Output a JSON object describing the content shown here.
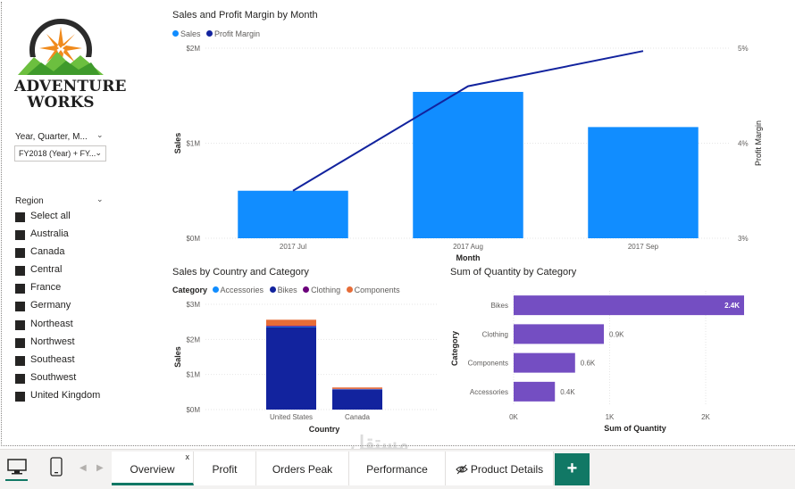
{
  "logo": {
    "line1": "ADVENTURE",
    "line2": "WORKS"
  },
  "slicers": {
    "date": {
      "title": "Year, Quarter, M...",
      "value": "FY2018 (Year) + FY..."
    },
    "region": {
      "title": "Region",
      "items": [
        "Select all",
        "Australia",
        "Canada",
        "Central",
        "France",
        "Germany",
        "Northeast",
        "Northwest",
        "Southeast",
        "Southwest",
        "United Kingdom"
      ]
    }
  },
  "charts_text": {
    "c1": {
      "title": "Sales and Profit Margin by Month",
      "legend": [
        "Sales",
        "Profit Margin"
      ],
      "xlabel": "Month",
      "ylabel": "Sales",
      "y2label": "Profit Margin",
      "yticks": [
        "$2M",
        "$1M",
        "$0M"
      ],
      "y2ticks": [
        "5%",
        "4%",
        "3%"
      ],
      "categories": [
        "2017 Jul",
        "2017 Aug",
        "2017 Sep"
      ]
    },
    "c2": {
      "title": "Sales by Country and Category",
      "legend_header": "Category",
      "legend": [
        "Accessories",
        "Bikes",
        "Clothing",
        "Components"
      ],
      "xlabel": "Country",
      "ylabel": "Sales",
      "yticks": [
        "$3M",
        "$2M",
        "$1M",
        "$0M"
      ],
      "categories": [
        "United States",
        "Canada"
      ]
    },
    "c3": {
      "title": "Sum of Quantity by Category",
      "xlabel": "Sum of Quantity",
      "ylabel": "Category",
      "categories": [
        "Bikes",
        "Clothing",
        "Components",
        "Accessories"
      ],
      "data_labels": [
        "2.4K",
        "0.9K",
        "0.6K",
        "0.4K"
      ],
      "xticks": [
        "0K",
        "1K",
        "2K"
      ]
    }
  },
  "chart_data": [
    {
      "type": "bar",
      "title": "Sales and Profit Margin by Month",
      "categories": [
        "2017 Jul",
        "2017 Aug",
        "2017 Sep"
      ],
      "series": [
        {
          "name": "Sales",
          "type": "bar",
          "axis": "left",
          "values": [
            500000,
            1540000,
            1170000
          ]
        },
        {
          "name": "Profit Margin",
          "type": "line",
          "axis": "right",
          "values": [
            3.5,
            4.6,
            4.97
          ]
        }
      ],
      "xlabel": "Month",
      "ylabel": "Sales",
      "y2label": "Profit Margin",
      "ylim": [
        0,
        2000000
      ],
      "y2lim": [
        3,
        5
      ],
      "legend": "top-left",
      "grid": true
    },
    {
      "type": "bar",
      "stacked": true,
      "title": "Sales by Country and Category",
      "categories": [
        "United States",
        "Canada"
      ],
      "series": [
        {
          "name": "Accessories",
          "values": [
            20000,
            10000
          ]
        },
        {
          "name": "Bikes",
          "values": [
            2350000,
            570000
          ]
        },
        {
          "name": "Clothing",
          "values": [
            20000,
            10000
          ]
        },
        {
          "name": "Components",
          "values": [
            170000,
            40000
          ]
        }
      ],
      "xlabel": "Country",
      "ylabel": "Sales",
      "ylim": [
        0,
        3000000
      ],
      "legend": "top-left",
      "grid": true
    },
    {
      "type": "bar",
      "orientation": "horizontal",
      "title": "Sum of Quantity by Category",
      "categories": [
        "Bikes",
        "Clothing",
        "Components",
        "Accessories"
      ],
      "values": [
        2400,
        940,
        640,
        430
      ],
      "xlabel": "Sum of Quantity",
      "ylabel": "Category",
      "xlim": [
        0,
        2500
      ],
      "grid": true
    }
  ],
  "colors": {
    "sales": "#118dff",
    "profit_margin": "#12239e",
    "accessories": "#118dff",
    "bikes": "#12239e",
    "clothing": "#6b007b",
    "components": "#e66c37",
    "quantity": "#744ec2",
    "accent": "#117865"
  },
  "tabs": [
    {
      "label": "Overview",
      "active": true,
      "close": "x"
    },
    {
      "label": "Profit"
    },
    {
      "label": "Orders Peak"
    },
    {
      "label": "Performance"
    },
    {
      "label": "Product Details",
      "hidden_icon": "hidden-eye-icon"
    }
  ],
  "add_tab": "+",
  "watermark": "مستقل"
}
